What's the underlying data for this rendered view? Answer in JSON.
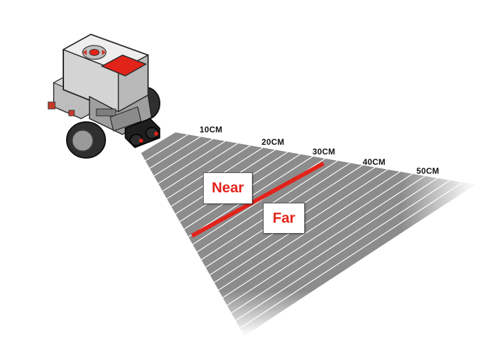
{
  "colors": {
    "beam": "#8c8c8c",
    "beam_lines": "#ffffff",
    "threshold": "#e2231a",
    "zone_text": "#e2231a",
    "robot_body": "#d9d9d9",
    "robot_dark": "#3a3a3a",
    "brick_screen": "#e2231a"
  },
  "distance_labels": [
    "10CM",
    "20CM",
    "30CM",
    "40CM",
    "50CM"
  ],
  "zones": {
    "near": "Near",
    "far": "Far"
  },
  "icons": {
    "robot": "ev3-robot-icon",
    "sensor": "ultrasonic-sensor-icon"
  }
}
